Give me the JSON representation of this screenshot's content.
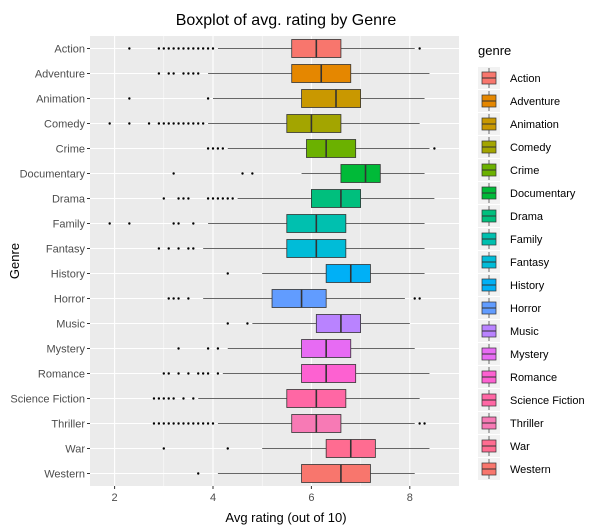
{
  "chart_data": {
    "type": "boxplot",
    "title": "Boxplot of avg. rating by Genre",
    "xlabel": "Avg rating (out of 10)",
    "ylabel": "Genre",
    "xlim": [
      1.5,
      9.0
    ],
    "xticks": [
      2,
      4,
      6,
      8
    ],
    "grid": true,
    "legend": {
      "title": "genre",
      "placement": "right"
    },
    "series": [
      {
        "name": "Action",
        "color": "#F8766D",
        "whisker_low": 4.1,
        "q1": 5.6,
        "median": 6.1,
        "q3": 6.6,
        "whisker_high": 8.1,
        "outliers": [
          2.3,
          2.9,
          3.0,
          3.1,
          3.2,
          3.3,
          3.4,
          3.5,
          3.6,
          3.7,
          3.8,
          3.9,
          4.0,
          8.2
        ]
      },
      {
        "name": "Adventure",
        "color": "#E58700",
        "whisker_low": 3.9,
        "q1": 5.6,
        "median": 6.2,
        "q3": 6.8,
        "whisker_high": 8.4,
        "outliers": [
          2.9,
          3.1,
          3.2,
          3.4,
          3.5,
          3.6,
          3.7
        ]
      },
      {
        "name": "Animation",
        "color": "#C99800",
        "whisker_low": 4.0,
        "q1": 5.8,
        "median": 6.5,
        "q3": 7.0,
        "whisker_high": 8.3,
        "outliers": [
          2.3,
          3.9
        ]
      },
      {
        "name": "Comedy",
        "color": "#A3A500",
        "whisker_low": 3.9,
        "q1": 5.5,
        "median": 6.0,
        "q3": 6.6,
        "whisker_high": 8.2,
        "outliers": [
          1.9,
          2.3,
          2.7,
          2.9,
          3.0,
          3.1,
          3.2,
          3.3,
          3.4,
          3.5,
          3.6,
          3.7,
          3.8
        ]
      },
      {
        "name": "Crime",
        "color": "#6BB100",
        "whisker_low": 4.3,
        "q1": 5.9,
        "median": 6.3,
        "q3": 6.9,
        "whisker_high": 8.4,
        "outliers": [
          3.9,
          4.0,
          4.1,
          4.2,
          8.5
        ]
      },
      {
        "name": "Documentary",
        "color": "#00BA38",
        "whisker_low": 5.8,
        "q1": 6.6,
        "median": 7.1,
        "q3": 7.4,
        "whisker_high": 8.3,
        "outliers": [
          3.2,
          4.6,
          4.8
        ]
      },
      {
        "name": "Drama",
        "color": "#00BF7D",
        "whisker_low": 4.5,
        "q1": 6.0,
        "median": 6.6,
        "q3": 7.0,
        "whisker_high": 8.5,
        "outliers": [
          3.0,
          3.3,
          3.4,
          3.5,
          3.9,
          4.0,
          4.1,
          4.2,
          4.3,
          4.4
        ]
      },
      {
        "name": "Family",
        "color": "#00C0AF",
        "whisker_low": 3.9,
        "q1": 5.5,
        "median": 6.1,
        "q3": 6.7,
        "whisker_high": 8.3,
        "outliers": [
          1.9,
          2.3,
          3.2,
          3.3,
          3.6
        ]
      },
      {
        "name": "Fantasy",
        "color": "#00BCD8",
        "whisker_low": 3.8,
        "q1": 5.5,
        "median": 6.1,
        "q3": 6.7,
        "whisker_high": 8.3,
        "outliers": [
          2.9,
          3.1,
          3.3,
          3.5,
          3.6
        ]
      },
      {
        "name": "History",
        "color": "#00B0F6",
        "whisker_low": 5.0,
        "q1": 6.3,
        "median": 6.8,
        "q3": 7.2,
        "whisker_high": 8.3,
        "outliers": [
          4.3
        ]
      },
      {
        "name": "Horror",
        "color": "#619CFF",
        "whisker_low": 3.8,
        "q1": 5.2,
        "median": 5.8,
        "q3": 6.3,
        "whisker_high": 7.9,
        "outliers": [
          3.1,
          3.2,
          3.3,
          3.5,
          8.1,
          8.2
        ]
      },
      {
        "name": "Music",
        "color": "#B983FF",
        "whisker_low": 4.8,
        "q1": 6.1,
        "median": 6.6,
        "q3": 7.0,
        "whisker_high": 8.0,
        "outliers": [
          4.3,
          4.7
        ]
      },
      {
        "name": "Mystery",
        "color": "#E76BF3",
        "whisker_low": 4.3,
        "q1": 5.8,
        "median": 6.3,
        "q3": 6.8,
        "whisker_high": 8.1,
        "outliers": [
          3.3,
          3.9,
          4.1
        ]
      },
      {
        "name": "Romance",
        "color": "#FD61D1",
        "whisker_low": 4.2,
        "q1": 5.8,
        "median": 6.3,
        "q3": 6.9,
        "whisker_high": 8.4,
        "outliers": [
          3.0,
          3.1,
          3.3,
          3.5,
          3.7,
          3.8,
          3.9,
          4.1
        ]
      },
      {
        "name": "Science Fiction",
        "color": "#FF67A4",
        "whisker_low": 3.7,
        "q1": 5.5,
        "median": 6.1,
        "q3": 6.7,
        "whisker_high": 8.2,
        "outliers": [
          2.8,
          2.9,
          3.0,
          3.1,
          3.2,
          3.4,
          3.6
        ]
      },
      {
        "name": "Thriller",
        "color": "#F77AB5",
        "whisker_low": 4.1,
        "q1": 5.6,
        "median": 6.1,
        "q3": 6.6,
        "whisker_high": 8.1,
        "outliers": [
          2.8,
          2.9,
          3.0,
          3.1,
          3.2,
          3.3,
          3.4,
          3.5,
          3.6,
          3.7,
          3.8,
          3.9,
          4.0,
          8.2,
          8.3
        ]
      },
      {
        "name": "War",
        "color": "#FF6C91",
        "whisker_low": 5.0,
        "q1": 6.3,
        "median": 6.8,
        "q3": 7.3,
        "whisker_high": 8.4,
        "outliers": [
          3.0,
          4.3
        ]
      },
      {
        "name": "Western",
        "color": "#F8766D",
        "whisker_low": 4.1,
        "q1": 5.8,
        "median": 6.6,
        "q3": 7.2,
        "whisker_high": 8.1,
        "outliers": [
          3.7
        ]
      }
    ]
  }
}
